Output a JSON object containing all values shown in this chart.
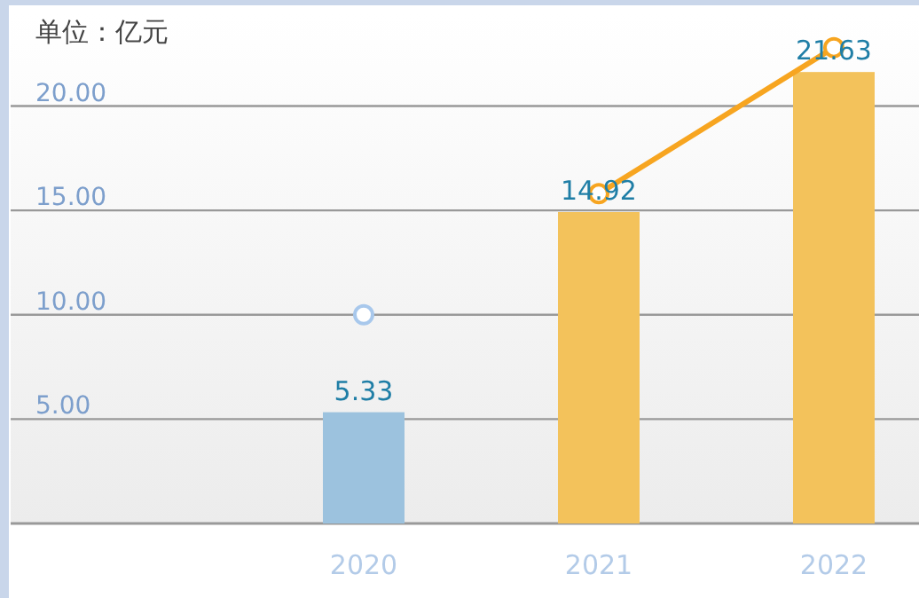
{
  "chart_data": {
    "type": "bar",
    "ylabel": "单位：亿元",
    "categories": [
      "2020",
      "2021",
      "2022"
    ],
    "series": [
      {
        "colors": [
          "#9cc2de",
          "#f3c25b",
          "#f3c25b"
        ],
        "values": [
          5.33,
          14.92,
          21.63
        ],
        "value_labels": [
          "5.33",
          "14.92",
          "21.63"
        ]
      },
      {
        "type": "line",
        "color": "#a8c8ec",
        "values": [
          10,
          null,
          null
        ]
      },
      {
        "type": "line",
        "color": "#f7a520",
        "values": [
          null,
          15.8,
          22.8
        ]
      }
    ],
    "ylim": [
      0,
      24.4
    ],
    "yticks": [
      {
        "value": 5,
        "label": "5.00"
      },
      {
        "value": 10,
        "label": "10.00"
      },
      {
        "value": 15,
        "label": "15.00"
      },
      {
        "value": 20,
        "label": "20.00"
      }
    ],
    "grid": "y",
    "marker": "circle"
  }
}
